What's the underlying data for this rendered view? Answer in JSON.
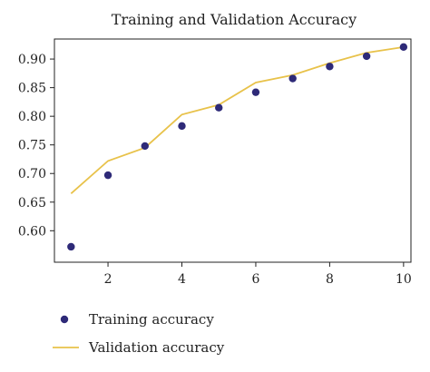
{
  "chart_data": {
    "type": "line",
    "title": "Training and Validation Accuracy",
    "xlabel": "",
    "ylabel": "",
    "xlim": [
      0.55,
      10.2
    ],
    "ylim": [
      0.545,
      0.935
    ],
    "x_ticks": [
      2,
      4,
      6,
      8,
      10
    ],
    "y_ticks": [
      0.6,
      0.65,
      0.7,
      0.75,
      0.8,
      0.85,
      0.9
    ],
    "x_tick_labels": [
      "2",
      "4",
      "6",
      "8",
      "10"
    ],
    "y_tick_labels": [
      "0.60",
      "0.65",
      "0.70",
      "0.75",
      "0.80",
      "0.85",
      "0.90"
    ],
    "x": [
      1,
      2,
      3,
      4,
      5,
      6,
      7,
      8,
      9,
      10
    ],
    "series": [
      {
        "name": "Training accuracy",
        "style": "scatter",
        "color": "#2e2a78",
        "values": [
          0.572,
          0.697,
          0.748,
          0.783,
          0.815,
          0.842,
          0.866,
          0.887,
          0.905,
          0.921
        ]
      },
      {
        "name": "Validation accuracy",
        "style": "line",
        "color": "#e8c24a",
        "values": [
          0.665,
          0.722,
          0.745,
          0.803,
          0.82,
          0.859,
          0.872,
          0.893,
          0.911,
          0.921
        ]
      }
    ],
    "grid": false,
    "legend_placement": "bottom-left"
  }
}
